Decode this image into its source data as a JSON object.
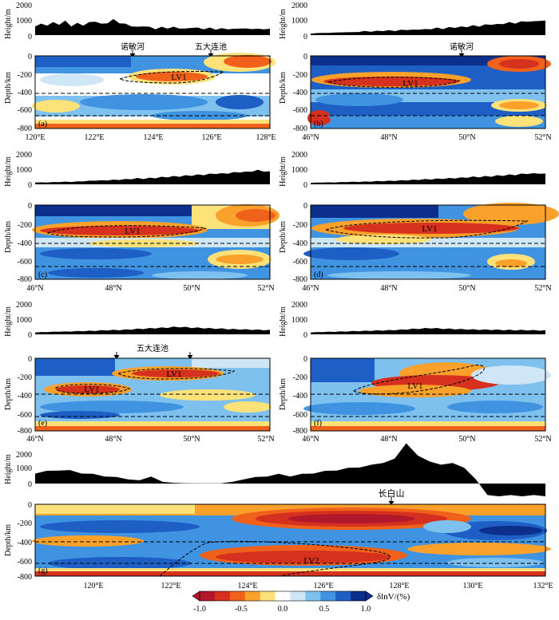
{
  "colors": {
    "scale": [
      "#b2182b",
      "#d6301e",
      "#f0611c",
      "#f9a12a",
      "#fde27a",
      "#ffffff",
      "#cfe6f7",
      "#7fc1ee",
      "#3f93e0",
      "#1e5fc6",
      "#0b2f8a"
    ],
    "terrain": "#000000",
    "dash": "#000000"
  },
  "chart_data": [
    {
      "id": "a",
      "type": "heatmap",
      "label": "(a)",
      "height_label": "Height/m",
      "height_ticks": [
        "0",
        "1000",
        "2000"
      ],
      "depth_label": "Depth/km",
      "depth_ticks": [
        "0",
        "-200",
        "-400",
        "-600",
        "-800"
      ],
      "x_ticks": [
        "120°E",
        "122°E",
        "124°E",
        "126°E",
        "128°E"
      ],
      "x_range": [
        120,
        128
      ],
      "depth_range": [
        0,
        -800
      ],
      "discontinuities_km": [
        -410,
        -660
      ],
      "lvz_labels": [
        "LV1"
      ],
      "markers": [
        {
          "label": "诺敏河",
          "x": 123.3
        },
        {
          "label": "五大连池",
          "x": 126.1
        }
      ],
      "elevation": [
        600,
        700,
        650,
        800,
        700,
        900,
        600,
        750,
        650,
        800,
        900,
        700,
        800,
        1000,
        800,
        700,
        600,
        500,
        600,
        500,
        400,
        500,
        450,
        500,
        450,
        400,
        500,
        450,
        400,
        450,
        380,
        420,
        400,
        380,
        450,
        400,
        420,
        380,
        400,
        380
      ]
    },
    {
      "id": "b",
      "type": "heatmap",
      "label": "(b)",
      "height_label": "Height/m",
      "height_ticks": [
        "0",
        "1000",
        "2000"
      ],
      "depth_label": "Depth/km",
      "depth_ticks": [
        "0",
        "-200",
        "-400",
        "-600",
        "-800"
      ],
      "x_ticks": [
        "46°N",
        "48°N",
        "50°N",
        "52°N"
      ],
      "x_range": [
        46,
        52
      ],
      "depth_range": [
        0,
        -800
      ],
      "discontinuities_km": [
        -410,
        -660
      ],
      "lvz_labels": [
        "LV1"
      ],
      "markers": [
        {
          "label": "诺敏河",
          "x": 49.8
        }
      ],
      "elevation": [
        100,
        120,
        150,
        130,
        180,
        160,
        200,
        180,
        220,
        250,
        230,
        260,
        280,
        300,
        280,
        320,
        350,
        330,
        380,
        360,
        400,
        450,
        420,
        480,
        500,
        520,
        550,
        600,
        580,
        650,
        700,
        680,
        750,
        800,
        780,
        850,
        900,
        850,
        950,
        900
      ]
    },
    {
      "id": "c",
      "type": "heatmap",
      "label": "(c)",
      "height_label": "Height/m",
      "height_ticks": [
        "0",
        "1000",
        "2000"
      ],
      "depth_label": "Depth/km",
      "depth_ticks": [
        "0",
        "-200",
        "-400",
        "-600",
        "-800"
      ],
      "x_ticks": [
        "46°N",
        "48°N",
        "50°N",
        "52°N"
      ],
      "x_range": [
        46,
        52
      ],
      "depth_range": [
        0,
        -800
      ],
      "discontinuities_km": [
        -410,
        -660
      ],
      "lvz_labels": [
        "LV1"
      ],
      "markers": [],
      "elevation": [
        120,
        120,
        130,
        140,
        150,
        160,
        160,
        180,
        200,
        220,
        250,
        240,
        260,
        280,
        300,
        320,
        350,
        380,
        360,
        400,
        420,
        450,
        480,
        500,
        520,
        550,
        580,
        600,
        620,
        650,
        700,
        680,
        720,
        750,
        800,
        780,
        850,
        900,
        850,
        800
      ]
    },
    {
      "id": "d",
      "type": "heatmap",
      "label": "(d)",
      "height_label": "Height/m",
      "height_ticks": [
        "0",
        "1000",
        "2000"
      ],
      "depth_label": "Depth/km",
      "depth_ticks": [
        "0",
        "-200",
        "-400",
        "-600",
        "-800"
      ],
      "x_ticks": [
        "46°N",
        "48°N",
        "50°N",
        "52°N"
      ],
      "x_range": [
        46,
        52
      ],
      "depth_range": [
        0,
        -800
      ],
      "discontinuities_km": [
        -410,
        -660
      ],
      "lvz_labels": [
        "LV1"
      ],
      "markers": [],
      "elevation": [
        100,
        110,
        120,
        120,
        130,
        140,
        150,
        150,
        160,
        170,
        180,
        200,
        210,
        220,
        230,
        250,
        260,
        280,
        300,
        320,
        330,
        350,
        370,
        380,
        400,
        420,
        450,
        470,
        480,
        500,
        520,
        550,
        580,
        600,
        620,
        650,
        700,
        680,
        720,
        650
      ]
    },
    {
      "id": "e",
      "type": "heatmap",
      "label": "(e)",
      "height_label": "Height/m",
      "height_ticks": [
        "0",
        "1000",
        "2000"
      ],
      "depth_label": "Depth/km",
      "depth_ticks": [
        "0",
        "-200",
        "-400",
        "-600",
        "-800"
      ],
      "x_ticks": [
        "46°N",
        "48°N",
        "50°N",
        "52°N"
      ],
      "x_range": [
        46,
        52
      ],
      "depth_range": [
        0,
        -800
      ],
      "discontinuities_km": [
        -410,
        -660
      ],
      "lvz_labels": [
        "LV1",
        "LV1"
      ],
      "markers": [
        {
          "label": "五大连池",
          "x": 49.0,
          "arrows": [
            48.1,
            50.0
          ]
        }
      ],
      "elevation": [
        120,
        140,
        150,
        160,
        180,
        170,
        190,
        200,
        210,
        220,
        230,
        250,
        260,
        270,
        280,
        300,
        320,
        340,
        360,
        380,
        400,
        420,
        440,
        460,
        480,
        450,
        430,
        420,
        400,
        380,
        370,
        360,
        340,
        330,
        320,
        310,
        300,
        290,
        280,
        270
      ]
    },
    {
      "id": "f",
      "type": "heatmap",
      "label": "(f)",
      "height_label": "Height/m",
      "height_ticks": [
        "0",
        "1000",
        "2000"
      ],
      "depth_label": "Depth/km",
      "depth_ticks": [
        "0",
        "-200",
        "-400",
        "-600",
        "-800"
      ],
      "x_ticks": [
        "46°N",
        "48°N",
        "50°N",
        "52°N"
      ],
      "x_range": [
        46,
        52
      ],
      "depth_range": [
        0,
        -800
      ],
      "discontinuities_km": [
        -410,
        -660
      ],
      "lvz_labels": [
        "LV1"
      ],
      "markers": [],
      "elevation": [
        130,
        140,
        150,
        160,
        170,
        180,
        190,
        200,
        210,
        220,
        230,
        240,
        250,
        260,
        280,
        300,
        320,
        340,
        360,
        380,
        400,
        380,
        360,
        350,
        340,
        330,
        320,
        310,
        300,
        300,
        290,
        290,
        280,
        280,
        270,
        270,
        260,
        260,
        250,
        250
      ]
    },
    {
      "id": "g",
      "type": "heatmap",
      "label": "(g)",
      "height_label": "Height/m",
      "height_ticks": [
        "0",
        "1000",
        "2000"
      ],
      "depth_label": "Depth/km",
      "depth_ticks": [
        "0",
        "-200",
        "-400",
        "-600",
        "-800"
      ],
      "x_ticks": [
        "120°E",
        "122°E",
        "124°E",
        "126°E",
        "128°E",
        "130°E",
        "132°E"
      ],
      "x_range": [
        118.8,
        132
      ],
      "depth_range": [
        0,
        -800
      ],
      "discontinuities_km": [
        -410,
        -660
      ],
      "lvz_labels": [
        "LV2"
      ],
      "markers": [
        {
          "label": "长白山",
          "x": 128.0
        }
      ],
      "elevation": [
        700,
        800,
        900,
        850,
        700,
        600,
        500,
        400,
        300,
        200,
        500,
        100,
        50,
        20,
        10,
        10,
        20,
        100,
        300,
        400,
        500,
        600,
        500,
        600,
        700,
        800,
        900,
        1000,
        1100,
        1200,
        1400,
        1600,
        2700,
        1800,
        1500,
        1200,
        1400,
        1000,
        300,
        -800,
        -800,
        -800,
        -800,
        -800,
        -800
      ]
    }
  ],
  "colorbar": {
    "ticks": [
      "-1.0",
      "-0.5",
      "0.0",
      "0.5",
      "1.0"
    ],
    "label": "δlnV/(%)"
  }
}
